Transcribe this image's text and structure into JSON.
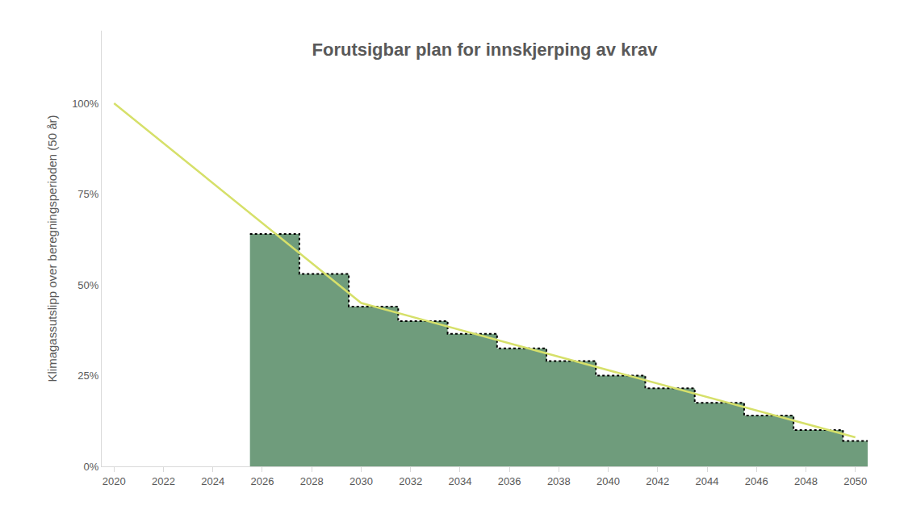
{
  "chart_data": {
    "type": "line",
    "title": "Forutsigbar plan for innskjerping av krav",
    "y_label": "Klimagassutslipp over beregningsperioden (50 år)",
    "xlim": [
      2019.5,
      2050.5
    ],
    "xticks": [
      2020,
      2022,
      2024,
      2026,
      2028,
      2030,
      2032,
      2034,
      2036,
      2038,
      2040,
      2042,
      2044,
      2046,
      2048,
      2050
    ],
    "ylim": [
      0,
      120
    ],
    "yticks": [
      {
        "value": 0,
        "label": "0%"
      },
      {
        "value": 25,
        "label": "25%"
      },
      {
        "value": 50,
        "label": "50%"
      },
      {
        "value": 75,
        "label": "75%"
      },
      {
        "value": 100,
        "label": "100%"
      }
    ],
    "grid": false,
    "series": [
      {
        "type": "step_area",
        "color": "#6f9c7c",
        "line_style": "dotted",
        "x": [
          2025.5,
          2027.5,
          2029.5,
          2031.5,
          2033.5,
          2035.5,
          2037.5,
          2039.5,
          2041.5,
          2043.5,
          2045.5,
          2047.5,
          2049.5,
          2050.5
        ],
        "values": [
          64,
          53,
          44,
          40,
          36.5,
          32.5,
          29,
          25,
          21.5,
          17.5,
          14,
          10,
          7,
          7
        ]
      },
      {
        "type": "line",
        "color": "#d6e06a",
        "line_style": "solid",
        "x": [
          2020,
          2030,
          2050
        ],
        "values": [
          100,
          45,
          8
        ]
      }
    ]
  }
}
